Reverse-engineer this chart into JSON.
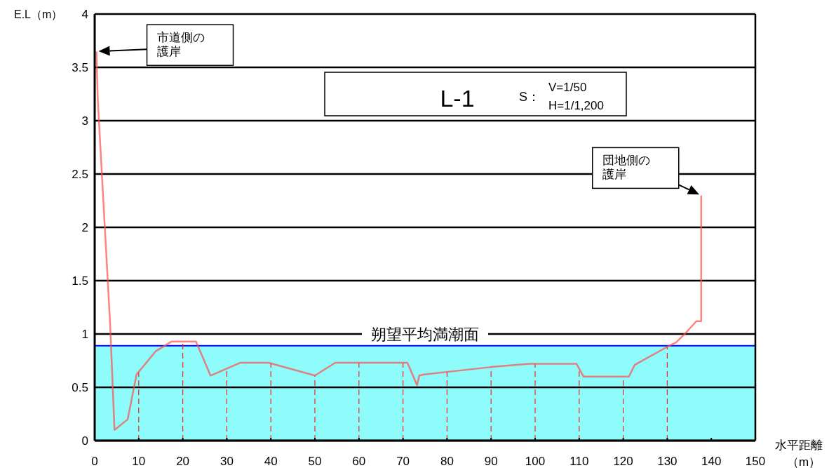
{
  "chart_data": {
    "type": "line",
    "xlabel": "水平距離（m）",
    "ylabel": "E.L（m）",
    "xlim": [
      0,
      150
    ],
    "xticks": [
      0,
      10,
      20,
      30,
      40,
      50,
      60,
      70,
      80,
      90,
      100,
      110,
      120,
      130,
      140,
      150
    ],
    "ylim": [
      0,
      4
    ],
    "yticks": [
      0,
      0.5,
      1,
      1.5,
      2,
      2.5,
      3,
      3.5,
      4
    ],
    "grid": "y",
    "series": [
      {
        "color": "#ff4d4d",
        "x": [
          0.4,
          0.7,
          3.5,
          4.5,
          7.5,
          9.5,
          12.3,
          13.9,
          17.5,
          23,
          26.3,
          33,
          39.5,
          50,
          54.6,
          71,
          73.2,
          73.7,
          74.7,
          90,
          98.7,
          109.4,
          111,
          121.3,
          122.6,
          130,
          132,
          134.2,
          136.6,
          137.7,
          137.7
        ],
        "values": [
          3.65,
          3.2,
          1.1,
          0.1,
          0.2,
          0.62,
          0.76,
          0.84,
          0.93,
          0.93,
          0.61,
          0.73,
          0.73,
          0.61,
          0.73,
          0.73,
          0.52,
          0.61,
          0.62,
          0.69,
          0.72,
          0.72,
          0.6,
          0.6,
          0.71,
          0.88,
          0.92,
          1.01,
          1.12,
          1.12,
          2.3
        ]
      }
    ],
    "bands": [
      {
        "axis": "y",
        "from": 0,
        "to": 0.89,
        "color": "#8ffcfc"
      }
    ],
    "ref_lines": [
      {
        "axis": "y",
        "value": 0.89,
        "label": "朔望平均満潮面",
        "color": "#0000ff"
      },
      {
        "axis": "x",
        "value": 10,
        "color": "#ff2020",
        "line_style": "dashed"
      },
      {
        "axis": "x",
        "value": 20,
        "color": "#ff2020",
        "line_style": "dashed"
      },
      {
        "axis": "x",
        "value": 30,
        "color": "#ff2020",
        "line_style": "dashed"
      },
      {
        "axis": "x",
        "value": 40,
        "color": "#ff2020",
        "line_style": "dashed"
      },
      {
        "axis": "x",
        "value": 50,
        "color": "#ff2020",
        "line_style": "dashed"
      },
      {
        "axis": "x",
        "value": 60,
        "color": "#ff2020",
        "line_style": "dashed"
      },
      {
        "axis": "x",
        "value": 70,
        "color": "#ff2020",
        "line_style": "dashed"
      },
      {
        "axis": "x",
        "value": 80,
        "color": "#ff2020",
        "line_style": "dashed"
      },
      {
        "axis": "x",
        "value": 90,
        "color": "#ff2020",
        "line_style": "dashed"
      },
      {
        "axis": "x",
        "value": 100,
        "color": "#ff2020",
        "line_style": "dashed"
      },
      {
        "axis": "x",
        "value": 110,
        "color": "#ff2020",
        "line_style": "dashed"
      },
      {
        "axis": "x",
        "value": 120,
        "color": "#ff2020",
        "line_style": "dashed"
      },
      {
        "axis": "x",
        "value": 130,
        "color": "#ff2020",
        "line_style": "dashed"
      }
    ],
    "annotations": [
      "市道側の護岸",
      "団地側の護岸",
      "L-1",
      "S：",
      "V=1/50",
      "H=1/1,200"
    ]
  }
}
